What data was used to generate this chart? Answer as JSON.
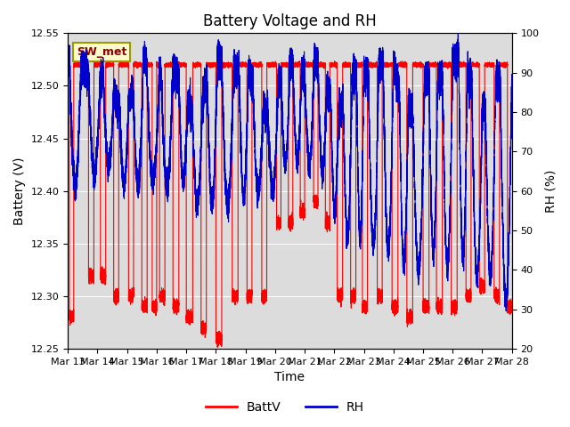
{
  "title": "Battery Voltage and RH",
  "xlabel": "Time",
  "ylabel_left": "Battery (V)",
  "ylabel_right": "RH (%)",
  "x_tick_labels": [
    "Mar 13",
    "Mar 14",
    "Mar 15",
    "Mar 16",
    "Mar 17",
    "Mar 18",
    "Mar 19",
    "Mar 20",
    "Mar 21",
    "Mar 22",
    "Mar 23",
    "Mar 24",
    "Mar 25",
    "Mar 26",
    "Mar 27",
    "Mar 28"
  ],
  "ylim_left": [
    12.25,
    12.55
  ],
  "ylim_right": [
    20,
    100
  ],
  "annotation": "SW_met",
  "batt_color": "#FF0000",
  "rh_color": "#0000CC",
  "background_color": "#DCDCDC",
  "fig_background": "#FFFFFF",
  "legend_labels": [
    "BattV",
    "RH"
  ],
  "title_fontsize": 12,
  "axis_fontsize": 10,
  "tick_fontsize": 8
}
